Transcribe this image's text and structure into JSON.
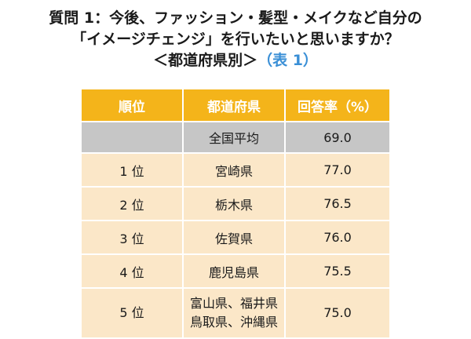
{
  "heading": {
    "line1": "質問 1：今後、ファッション・髪型・メイクなど自分の",
    "line2": "「イメージチェンジ」を行いたいと思いますか？",
    "line3": "＜都道府県別＞",
    "table_tag": "（表 1）"
  },
  "table": {
    "headers": [
      "順位",
      "都道府県",
      "回答率（%）"
    ],
    "average": {
      "rank": "",
      "prefecture": "全国平均",
      "rate": "69.0"
    },
    "rows": [
      {
        "rank": "1 位",
        "prefectures": [
          "宮崎県"
        ],
        "rate": "77.0"
      },
      {
        "rank": "2 位",
        "prefectures": [
          "栃木県"
        ],
        "rate": "76.5"
      },
      {
        "rank": "3 位",
        "prefectures": [
          "佐賀県"
        ],
        "rate": "76.0"
      },
      {
        "rank": "4 位",
        "prefectures": [
          "鹿児島県"
        ],
        "rate": "75.5"
      },
      {
        "rank": "5 位",
        "prefectures": [
          "富山県、福井県",
          "鳥取県、沖縄県"
        ],
        "rate": "75.0"
      }
    ]
  },
  "colors": {
    "header_bg": "#f4b41a",
    "average_bg": "#c6c6c6",
    "row_bg": "#fbe7c8",
    "tag_blue": "#3a8fd6"
  }
}
